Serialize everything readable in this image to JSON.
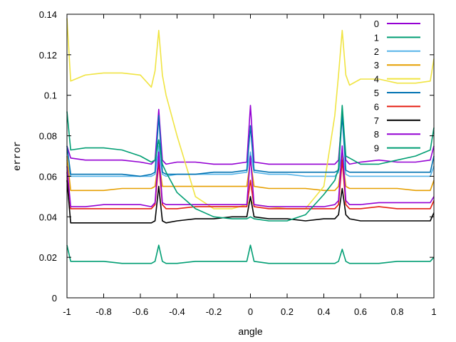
{
  "chart_data": {
    "type": "line",
    "xlabel": "angle",
    "ylabel": "error",
    "xlim": [
      -1,
      1
    ],
    "ylim": [
      0,
      0.14
    ],
    "x_ticks": [
      -1,
      -0.8,
      -0.6,
      -0.4,
      -0.2,
      0,
      0.2,
      0.4,
      0.6,
      0.8,
      1
    ],
    "x_tick_labels": [
      "-1",
      "-0.8",
      "-0.6",
      "-0.4",
      "-0.2",
      "0",
      "0.2",
      "0.4",
      "0.6",
      "0.8",
      "1"
    ],
    "y_ticks": [
      0,
      0.02,
      0.04,
      0.06,
      0.08,
      0.1,
      0.12,
      0.14
    ],
    "y_tick_labels": [
      "0",
      "0.02",
      "0.04",
      "0.06",
      "0.08",
      "0.1",
      "0.12",
      "0.14"
    ],
    "grid": false,
    "legend_position": "top-right",
    "x": [
      -1,
      -0.98,
      -0.9,
      -0.8,
      -0.7,
      -0.6,
      -0.54,
      -0.52,
      -0.5,
      -0.48,
      -0.46,
      -0.4,
      -0.3,
      -0.2,
      -0.1,
      -0.02,
      0,
      0.02,
      0.1,
      0.2,
      0.3,
      0.4,
      0.46,
      0.48,
      0.5,
      0.52,
      0.54,
      0.6,
      0.7,
      0.8,
      0.9,
      0.98,
      1
    ],
    "series": [
      {
        "name": "0",
        "color": "#9400d3",
        "values": [
          0.075,
          0.069,
          0.068,
          0.068,
          0.068,
          0.067,
          0.066,
          0.068,
          0.093,
          0.068,
          0.066,
          0.067,
          0.067,
          0.066,
          0.066,
          0.067,
          0.095,
          0.067,
          0.066,
          0.066,
          0.066,
          0.066,
          0.066,
          0.068,
          0.091,
          0.068,
          0.066,
          0.067,
          0.068,
          0.067,
          0.067,
          0.068,
          0.075
        ]
      },
      {
        "name": "1",
        "color": "#009e73",
        "values": [
          0.026,
          0.018,
          0.018,
          0.018,
          0.017,
          0.017,
          0.017,
          0.018,
          0.026,
          0.018,
          0.017,
          0.017,
          0.018,
          0.018,
          0.018,
          0.018,
          0.026,
          0.018,
          0.017,
          0.017,
          0.017,
          0.017,
          0.017,
          0.018,
          0.024,
          0.018,
          0.017,
          0.017,
          0.017,
          0.018,
          0.018,
          0.018,
          0.02
        ]
      },
      {
        "name": "2",
        "color": "#56b4e9",
        "values": [
          0.068,
          0.06,
          0.06,
          0.06,
          0.06,
          0.06,
          0.06,
          0.061,
          0.075,
          0.061,
          0.06,
          0.061,
          0.061,
          0.061,
          0.061,
          0.062,
          0.072,
          0.062,
          0.061,
          0.061,
          0.06,
          0.06,
          0.06,
          0.062,
          0.073,
          0.061,
          0.06,
          0.06,
          0.06,
          0.06,
          0.06,
          0.06,
          0.065
        ]
      },
      {
        "name": "3",
        "color": "#e69f00",
        "values": [
          0.07,
          0.053,
          0.053,
          0.053,
          0.054,
          0.054,
          0.054,
          0.055,
          0.068,
          0.055,
          0.055,
          0.055,
          0.055,
          0.055,
          0.055,
          0.055,
          0.068,
          0.055,
          0.054,
          0.054,
          0.054,
          0.053,
          0.053,
          0.055,
          0.07,
          0.055,
          0.054,
          0.054,
          0.054,
          0.054,
          0.053,
          0.053,
          0.058
        ]
      },
      {
        "name": "4",
        "color": "#f0e442",
        "values": [
          0.138,
          0.107,
          0.11,
          0.111,
          0.111,
          0.11,
          0.104,
          0.112,
          0.132,
          0.11,
          0.1,
          0.08,
          0.05,
          0.044,
          0.044,
          0.046,
          0.048,
          0.046,
          0.045,
          0.044,
          0.044,
          0.055,
          0.09,
          0.11,
          0.132,
          0.11,
          0.105,
          0.108,
          0.108,
          0.106,
          0.106,
          0.107,
          0.118
        ]
      },
      {
        "name": "5",
        "color": "#0072b2",
        "values": [
          0.075,
          0.061,
          0.061,
          0.061,
          0.061,
          0.06,
          0.061,
          0.062,
          0.09,
          0.062,
          0.061,
          0.061,
          0.061,
          0.062,
          0.062,
          0.063,
          0.085,
          0.063,
          0.062,
          0.062,
          0.062,
          0.062,
          0.062,
          0.063,
          0.09,
          0.063,
          0.062,
          0.062,
          0.062,
          0.062,
          0.062,
          0.062,
          0.07
        ]
      },
      {
        "name": "6",
        "color": "#e51e10",
        "values": [
          0.062,
          0.044,
          0.044,
          0.044,
          0.044,
          0.044,
          0.044,
          0.046,
          0.067,
          0.046,
          0.044,
          0.044,
          0.045,
          0.045,
          0.045,
          0.045,
          0.058,
          0.045,
          0.044,
          0.044,
          0.044,
          0.044,
          0.044,
          0.046,
          0.068,
          0.046,
          0.044,
          0.044,
          0.045,
          0.044,
          0.044,
          0.044,
          0.048
        ]
      },
      {
        "name": "7",
        "color": "#000000",
        "values": [
          0.058,
          0.037,
          0.037,
          0.037,
          0.037,
          0.037,
          0.037,
          0.038,
          0.055,
          0.038,
          0.037,
          0.038,
          0.039,
          0.039,
          0.04,
          0.04,
          0.05,
          0.04,
          0.039,
          0.039,
          0.038,
          0.039,
          0.039,
          0.041,
          0.054,
          0.041,
          0.039,
          0.038,
          0.038,
          0.038,
          0.038,
          0.038,
          0.042
        ]
      },
      {
        "name": "8",
        "color": "#9400d3",
        "values": [
          0.065,
          0.045,
          0.045,
          0.046,
          0.046,
          0.046,
          0.045,
          0.047,
          0.072,
          0.047,
          0.046,
          0.046,
          0.046,
          0.046,
          0.046,
          0.046,
          0.07,
          0.046,
          0.045,
          0.045,
          0.045,
          0.045,
          0.046,
          0.048,
          0.075,
          0.048,
          0.046,
          0.046,
          0.047,
          0.047,
          0.047,
          0.047,
          0.05
        ]
      },
      {
        "name": "9",
        "color": "#009e73",
        "values": [
          0.092,
          0.073,
          0.074,
          0.074,
          0.073,
          0.07,
          0.067,
          0.068,
          0.078,
          0.066,
          0.062,
          0.052,
          0.044,
          0.04,
          0.039,
          0.039,
          0.04,
          0.039,
          0.038,
          0.038,
          0.041,
          0.051,
          0.058,
          0.064,
          0.095,
          0.07,
          0.069,
          0.066,
          0.066,
          0.068,
          0.07,
          0.073,
          0.084
        ]
      }
    ]
  }
}
